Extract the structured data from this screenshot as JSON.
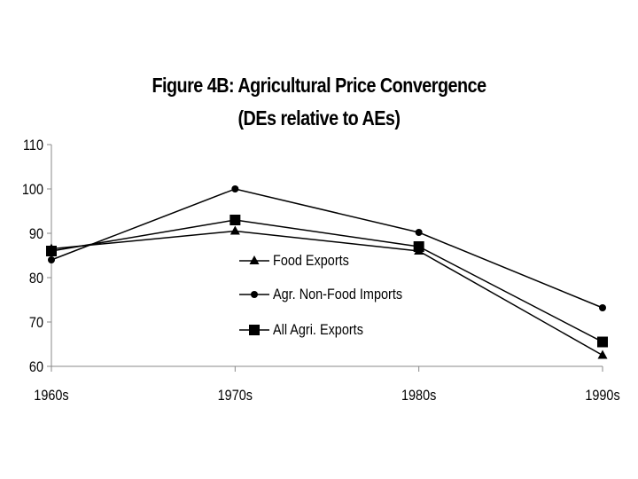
{
  "chart_data": {
    "type": "line",
    "title": "Figure 4B: Agricultural Price Convergence",
    "subtitle": "(DEs relative to AEs)",
    "xlabel": "",
    "ylabel": "",
    "categories": [
      "1960s",
      "1970s",
      "1980s",
      "1990s"
    ],
    "ylim": [
      60,
      110
    ],
    "yticks": [
      60,
      70,
      80,
      90,
      100,
      110
    ],
    "grid": false,
    "legend_position": "center",
    "series": [
      {
        "name": "Food Exports",
        "marker": "triangle",
        "values": [
          86.5,
          90.5,
          86,
          62.5
        ]
      },
      {
        "name": "Agr. Non-Food Imports",
        "marker": "circle",
        "values": [
          84,
          100,
          90.2,
          73.2
        ]
      },
      {
        "name": "All Agri. Exports",
        "marker": "square",
        "values": [
          86,
          93,
          87,
          65.5
        ]
      }
    ]
  }
}
